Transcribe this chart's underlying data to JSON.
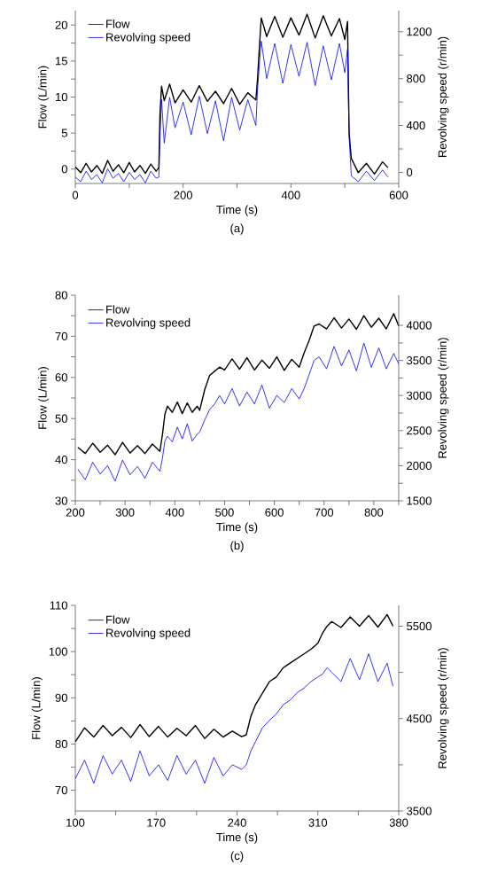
{
  "chart_data": [
    {
      "type": "line",
      "xlabel": "Time (s)",
      "ylabel": "Flow (L/min)",
      "y2label": "Revolving speed (r/min)",
      "annotations": [
        "(a)"
      ],
      "legend": "top left",
      "xlim": [
        0,
        600
      ],
      "xticks": [
        0,
        {
          "value": 100,
          "label": null
        },
        200,
        {
          "value": 300,
          "label": null
        },
        400,
        {
          "value": 500,
          "label": null
        },
        600
      ],
      "ylim": [
        -2,
        22
      ],
      "yticks": [
        0,
        {
          "value": 2.5,
          "label": null
        },
        5,
        {
          "value": 7.5,
          "label": null
        },
        10,
        {
          "value": 12.5,
          "label": null
        },
        15,
        {
          "value": 17.5,
          "label": null
        },
        20
      ],
      "y2lim": [
        -95,
        1380
      ],
      "y2ticks": [
        0,
        {
          "value": 200,
          "label": null
        },
        400,
        {
          "value": 600,
          "label": null
        },
        800,
        {
          "value": 1000,
          "label": null
        },
        1200
      ],
      "x": [
        0,
        10,
        20,
        30,
        40,
        50,
        60,
        70,
        80,
        90,
        100,
        110,
        120,
        130,
        140,
        150,
        155,
        157,
        160,
        165,
        175,
        185,
        200,
        215,
        230,
        245,
        260,
        275,
        290,
        305,
        320,
        335,
        338,
        342,
        345,
        355,
        370,
        385,
        400,
        415,
        430,
        445,
        460,
        475,
        490,
        500,
        505,
        508,
        512,
        525,
        540,
        555,
        570,
        580
      ],
      "series": [
        {
          "name": "Flow",
          "color": "#000000",
          "values": [
            0.3,
            -0.5,
            0.8,
            -0.4,
            0.5,
            -0.6,
            1.2,
            -0.3,
            0.6,
            -0.5,
            0.9,
            -0.4,
            0.5,
            -0.6,
            0.7,
            -0.3,
            0.2,
            7.5,
            11.5,
            9.5,
            11.8,
            9.2,
            11.0,
            9.3,
            11.6,
            9.4,
            10.8,
            9.1,
            11.2,
            9.0,
            10.6,
            9.6,
            12.5,
            17.5,
            21.0,
            18.4,
            21.2,
            18.3,
            21.0,
            18.6,
            21.5,
            18.2,
            21.3,
            18.5,
            20.9,
            18.0,
            20.5,
            5.0,
            1.5,
            -0.5,
            0.8,
            -0.7,
            1.0,
            0.2
          ]
        },
        {
          "name": "Revolving speed",
          "color": "#0000ff",
          "axis": "y2",
          "values": [
            -40,
            -80,
            10,
            -60,
            -20,
            -90,
            30,
            -50,
            -10,
            -80,
            0,
            -60,
            -20,
            -90,
            10,
            -50,
            -40,
            300,
            620,
            250,
            640,
            380,
            600,
            320,
            650,
            330,
            610,
            270,
            640,
            360,
            620,
            400,
            700,
            960,
            1120,
            800,
            1100,
            760,
            1090,
            820,
            1110,
            740,
            1080,
            790,
            1100,
            850,
            1050,
            300,
            -30,
            -80,
            10,
            -70,
            20,
            -40
          ]
        }
      ]
    },
    {
      "type": "line",
      "xlabel": "Time (s)",
      "ylabel": "Flow (L/min)",
      "y2label": "Revolving speed (r/min)",
      "annotations": [
        "(b)"
      ],
      "legend": "top left",
      "xlim": [
        200,
        850
      ],
      "xticks": [
        200,
        {
          "value": 250,
          "label": null
        },
        300,
        {
          "value": 350,
          "label": null
        },
        400,
        {
          "value": 450,
          "label": null
        },
        500,
        {
          "value": 550,
          "label": null
        },
        600,
        {
          "value": 650,
          "label": null
        },
        700,
        {
          "value": 750,
          "label": null
        },
        800,
        {
          "value": 850,
          "label": null
        }
      ],
      "ylim": [
        30,
        80
      ],
      "yticks": [
        30,
        {
          "value": 35,
          "label": null
        },
        40,
        {
          "value": 45,
          "label": null
        },
        50,
        {
          "value": 55,
          "label": null
        },
        60,
        {
          "value": 65,
          "label": null
        },
        70,
        {
          "value": 75,
          "label": null
        },
        80
      ],
      "y2lim": [
        1500,
        4430
      ],
      "y2ticks": [
        1500,
        {
          "value": 1750,
          "label": null
        },
        2000,
        {
          "value": 2250,
          "label": null
        },
        2500,
        {
          "value": 2750,
          "label": null
        },
        3000,
        {
          "value": 3250,
          "label": null
        },
        3500,
        {
          "value": 3750,
          "label": null
        },
        4000
      ],
      "x": [
        205,
        220,
        235,
        250,
        265,
        280,
        295,
        310,
        325,
        340,
        355,
        370,
        375,
        380,
        385,
        395,
        405,
        415,
        425,
        435,
        445,
        450,
        460,
        470,
        480,
        490,
        500,
        515,
        530,
        545,
        560,
        575,
        590,
        605,
        620,
        635,
        650,
        660,
        670,
        680,
        690,
        705,
        720,
        735,
        750,
        765,
        780,
        795,
        810,
        825,
        840,
        850
      ],
      "series": [
        {
          "name": "Flow",
          "color": "#000000",
          "values": [
            43,
            41.5,
            44,
            41.8,
            43.5,
            41.2,
            44.2,
            41.6,
            43.4,
            41.5,
            43.8,
            42,
            46,
            51,
            53,
            51.5,
            54,
            51.2,
            53.8,
            51.5,
            53,
            52,
            57,
            60.5,
            61.5,
            62.5,
            61.8,
            64.5,
            62,
            64.8,
            61.8,
            64.2,
            62.2,
            65,
            61.7,
            64.4,
            62.5,
            66,
            69,
            72.5,
            73,
            71.8,
            74.5,
            72,
            74.2,
            71.7,
            75,
            72.2,
            74.4,
            71.8,
            75.5,
            72.5
          ]
        },
        {
          "name": "Revolving speed",
          "color": "#0000ff",
          "axis": "y2",
          "values": [
            1950,
            1800,
            2050,
            1880,
            2000,
            1780,
            2080,
            1870,
            1990,
            1820,
            2050,
            1920,
            2100,
            2350,
            2420,
            2340,
            2550,
            2380,
            2600,
            2350,
            2450,
            2480,
            2650,
            2800,
            2880,
            3000,
            2880,
            3100,
            2850,
            3050,
            2880,
            3150,
            2820,
            3000,
            2900,
            3100,
            2950,
            3100,
            3300,
            3500,
            3550,
            3380,
            3700,
            3420,
            3650,
            3350,
            3750,
            3400,
            3680,
            3380,
            3600,
            3450
          ]
        }
      ]
    },
    {
      "type": "line",
      "xlabel": "Time (s)",
      "ylabel": "Flow (L/min)",
      "y2label": "Revolving speed (r/min)",
      "annotations": [
        "(c)"
      ],
      "legend": "top left",
      "xlim": [
        100,
        380
      ],
      "xticks": [
        100,
        {
          "value": 135,
          "label": null
        },
        170,
        {
          "value": 205,
          "label": null
        },
        240,
        {
          "value": 275,
          "label": null
        },
        310,
        {
          "value": 345,
          "label": null
        },
        380
      ],
      "ylim": [
        65.5,
        110
      ],
      "yticks": [
        70,
        {
          "value": 75,
          "label": null
        },
        80,
        {
          "value": 85,
          "label": null
        },
        90,
        {
          "value": 95,
          "label": null
        },
        100,
        {
          "value": 105,
          "label": null
        },
        110
      ],
      "y2lim": [
        3500,
        5725
      ],
      "y2ticks": [
        3500,
        {
          "value": 4000,
          "label": null
        },
        4500,
        {
          "value": 5000,
          "label": null
        },
        5500
      ],
      "x": [
        100,
        108,
        116,
        124,
        132,
        140,
        148,
        156,
        164,
        172,
        180,
        188,
        196,
        204,
        212,
        220,
        228,
        236,
        244,
        248,
        252,
        256,
        262,
        268,
        274,
        280,
        286,
        292,
        298,
        304,
        310,
        314,
        318,
        322,
        330,
        338,
        346,
        354,
        362,
        370,
        375
      ],
      "series": [
        {
          "name": "Flow",
          "color": "#000000",
          "values": [
            80.5,
            83.5,
            81.5,
            84,
            81.8,
            83.6,
            81.4,
            84.2,
            81.6,
            83.8,
            81.5,
            83.4,
            81.8,
            84,
            81.2,
            83.2,
            81.5,
            82.8,
            81.6,
            82,
            86,
            88.5,
            91,
            93.5,
            94.5,
            96.5,
            97.5,
            98.5,
            99.5,
            100.5,
            101.8,
            104,
            105.5,
            106.5,
            105.2,
            107.5,
            105.5,
            107.8,
            105.3,
            108,
            105.5
          ]
        },
        {
          "name": "Revolving speed",
          "color": "#0000ff",
          "axis": "y2",
          "values": [
            3850,
            4050,
            3800,
            4100,
            3900,
            4050,
            3820,
            4150,
            3880,
            4000,
            3830,
            4100,
            3900,
            4050,
            3800,
            4080,
            3880,
            4000,
            3950,
            4000,
            4150,
            4250,
            4400,
            4480,
            4550,
            4650,
            4700,
            4780,
            4830,
            4900,
            4950,
            4980,
            5050,
            5000,
            4900,
            5150,
            4920,
            5200,
            4900,
            5100,
            4850
          ]
        }
      ]
    }
  ]
}
